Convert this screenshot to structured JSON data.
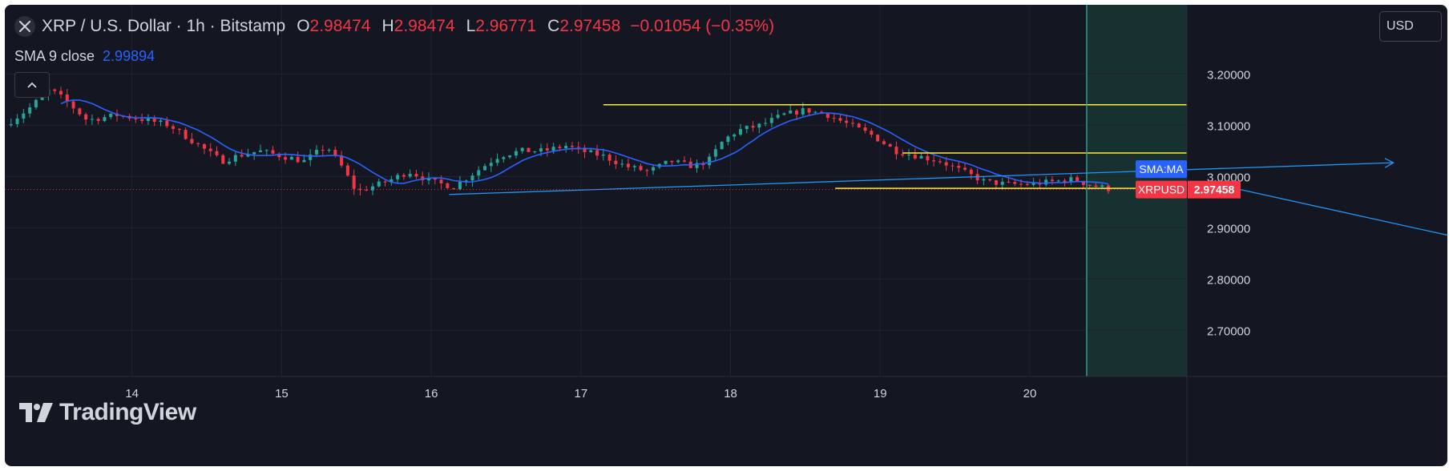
{
  "header": {
    "symbol_title": "XRP / U.S. Dollar · 1h · Bitstamp",
    "ohlc": [
      {
        "key": "O",
        "value": "2.98474"
      },
      {
        "key": "H",
        "value": "2.98474"
      },
      {
        "key": "L",
        "value": "2.96771"
      },
      {
        "key": "C",
        "value": "2.97458"
      }
    ],
    "change": "−0.01054 (−0.35%)"
  },
  "indicator": {
    "label": "SMA 9 close",
    "value": "2.99894"
  },
  "currency_button": "USD",
  "watermark": "TradingView",
  "price_tags": {
    "sma_label": "SMA:MA",
    "symbol_label": "XRPUSD",
    "last_price": "2.97458"
  },
  "colors": {
    "up": "#26a69a",
    "down": "#f23645",
    "sma": "#2962ff",
    "drawing": "#ffeb3b",
    "arrow": "#2196f3"
  },
  "chart_data": {
    "type": "candlestick",
    "x_ticks": [
      "14",
      "15",
      "16",
      "17",
      "18",
      "19",
      "20"
    ],
    "y_ticks": [
      "3.20000",
      "3.10000",
      "3.00000",
      "2.90000",
      "2.80000",
      "2.70000"
    ],
    "ylim": [
      2.61,
      3.335
    ],
    "x_range_days": [
      13.15,
      21.05
    ],
    "current_time_day": 20.38,
    "last_price": 2.97458,
    "sma_value": 2.99894,
    "close_path": [
      [
        13.15,
        3.1
      ],
      [
        13.3,
        3.13
      ],
      [
        13.45,
        3.17
      ],
      [
        13.55,
        3.15
      ],
      [
        13.7,
        3.11
      ],
      [
        13.9,
        3.12
      ],
      [
        14.1,
        3.11
      ],
      [
        14.25,
        3.1
      ],
      [
        14.4,
        3.07
      ],
      [
        14.5,
        3.05
      ],
      [
        14.6,
        3.03
      ],
      [
        14.7,
        3.04
      ],
      [
        14.85,
        3.05
      ],
      [
        15.0,
        3.04
      ],
      [
        15.15,
        3.03
      ],
      [
        15.3,
        3.06
      ],
      [
        15.4,
        3.02
      ],
      [
        15.5,
        2.97
      ],
      [
        15.6,
        2.98
      ],
      [
        15.7,
        2.99
      ],
      [
        15.85,
        3.01
      ],
      [
        16.0,
        2.99
      ],
      [
        16.15,
        2.98
      ],
      [
        16.3,
        3.01
      ],
      [
        16.45,
        3.04
      ],
      [
        16.6,
        3.05
      ],
      [
        16.75,
        3.05
      ],
      [
        16.9,
        3.06
      ],
      [
        17.0,
        3.05
      ],
      [
        17.15,
        3.04
      ],
      [
        17.3,
        3.02
      ],
      [
        17.45,
        3.01
      ],
      [
        17.6,
        3.03
      ],
      [
        17.75,
        3.02
      ],
      [
        17.85,
        3.03
      ],
      [
        17.95,
        3.07
      ],
      [
        18.05,
        3.09
      ],
      [
        18.2,
        3.1
      ],
      [
        18.35,
        3.12
      ],
      [
        18.5,
        3.13
      ],
      [
        18.65,
        3.12
      ],
      [
        18.8,
        3.1
      ],
      [
        18.95,
        3.08
      ],
      [
        19.1,
        3.05
      ],
      [
        19.25,
        3.04
      ],
      [
        19.4,
        3.03
      ],
      [
        19.55,
        3.01
      ],
      [
        19.7,
        2.99
      ],
      [
        19.85,
        2.985
      ],
      [
        20.0,
        2.985
      ],
      [
        20.15,
        2.99
      ],
      [
        20.3,
        2.995
      ],
      [
        20.38,
        2.985
      ],
      [
        20.55,
        2.97458
      ]
    ],
    "drawings": [
      {
        "type": "horizontal_segment",
        "price": 3.14,
        "from_day": 17.15,
        "to_day": 25.0
      },
      {
        "type": "horizontal_segment",
        "price": 3.046,
        "from_day": 19.15,
        "to_day": 22.0
      },
      {
        "type": "horizontal_segment",
        "price": 2.977,
        "from_day": 18.7,
        "to_day": 23.2
      },
      {
        "type": "trend_arrow",
        "from": [
          16.12,
          2.965
        ],
        "to": [
          22.43,
          3.027
        ]
      },
      {
        "type": "trend_arrow",
        "from": [
          21.4,
          2.975
        ],
        "to": [
          23.3,
          2.853
        ]
      }
    ]
  }
}
